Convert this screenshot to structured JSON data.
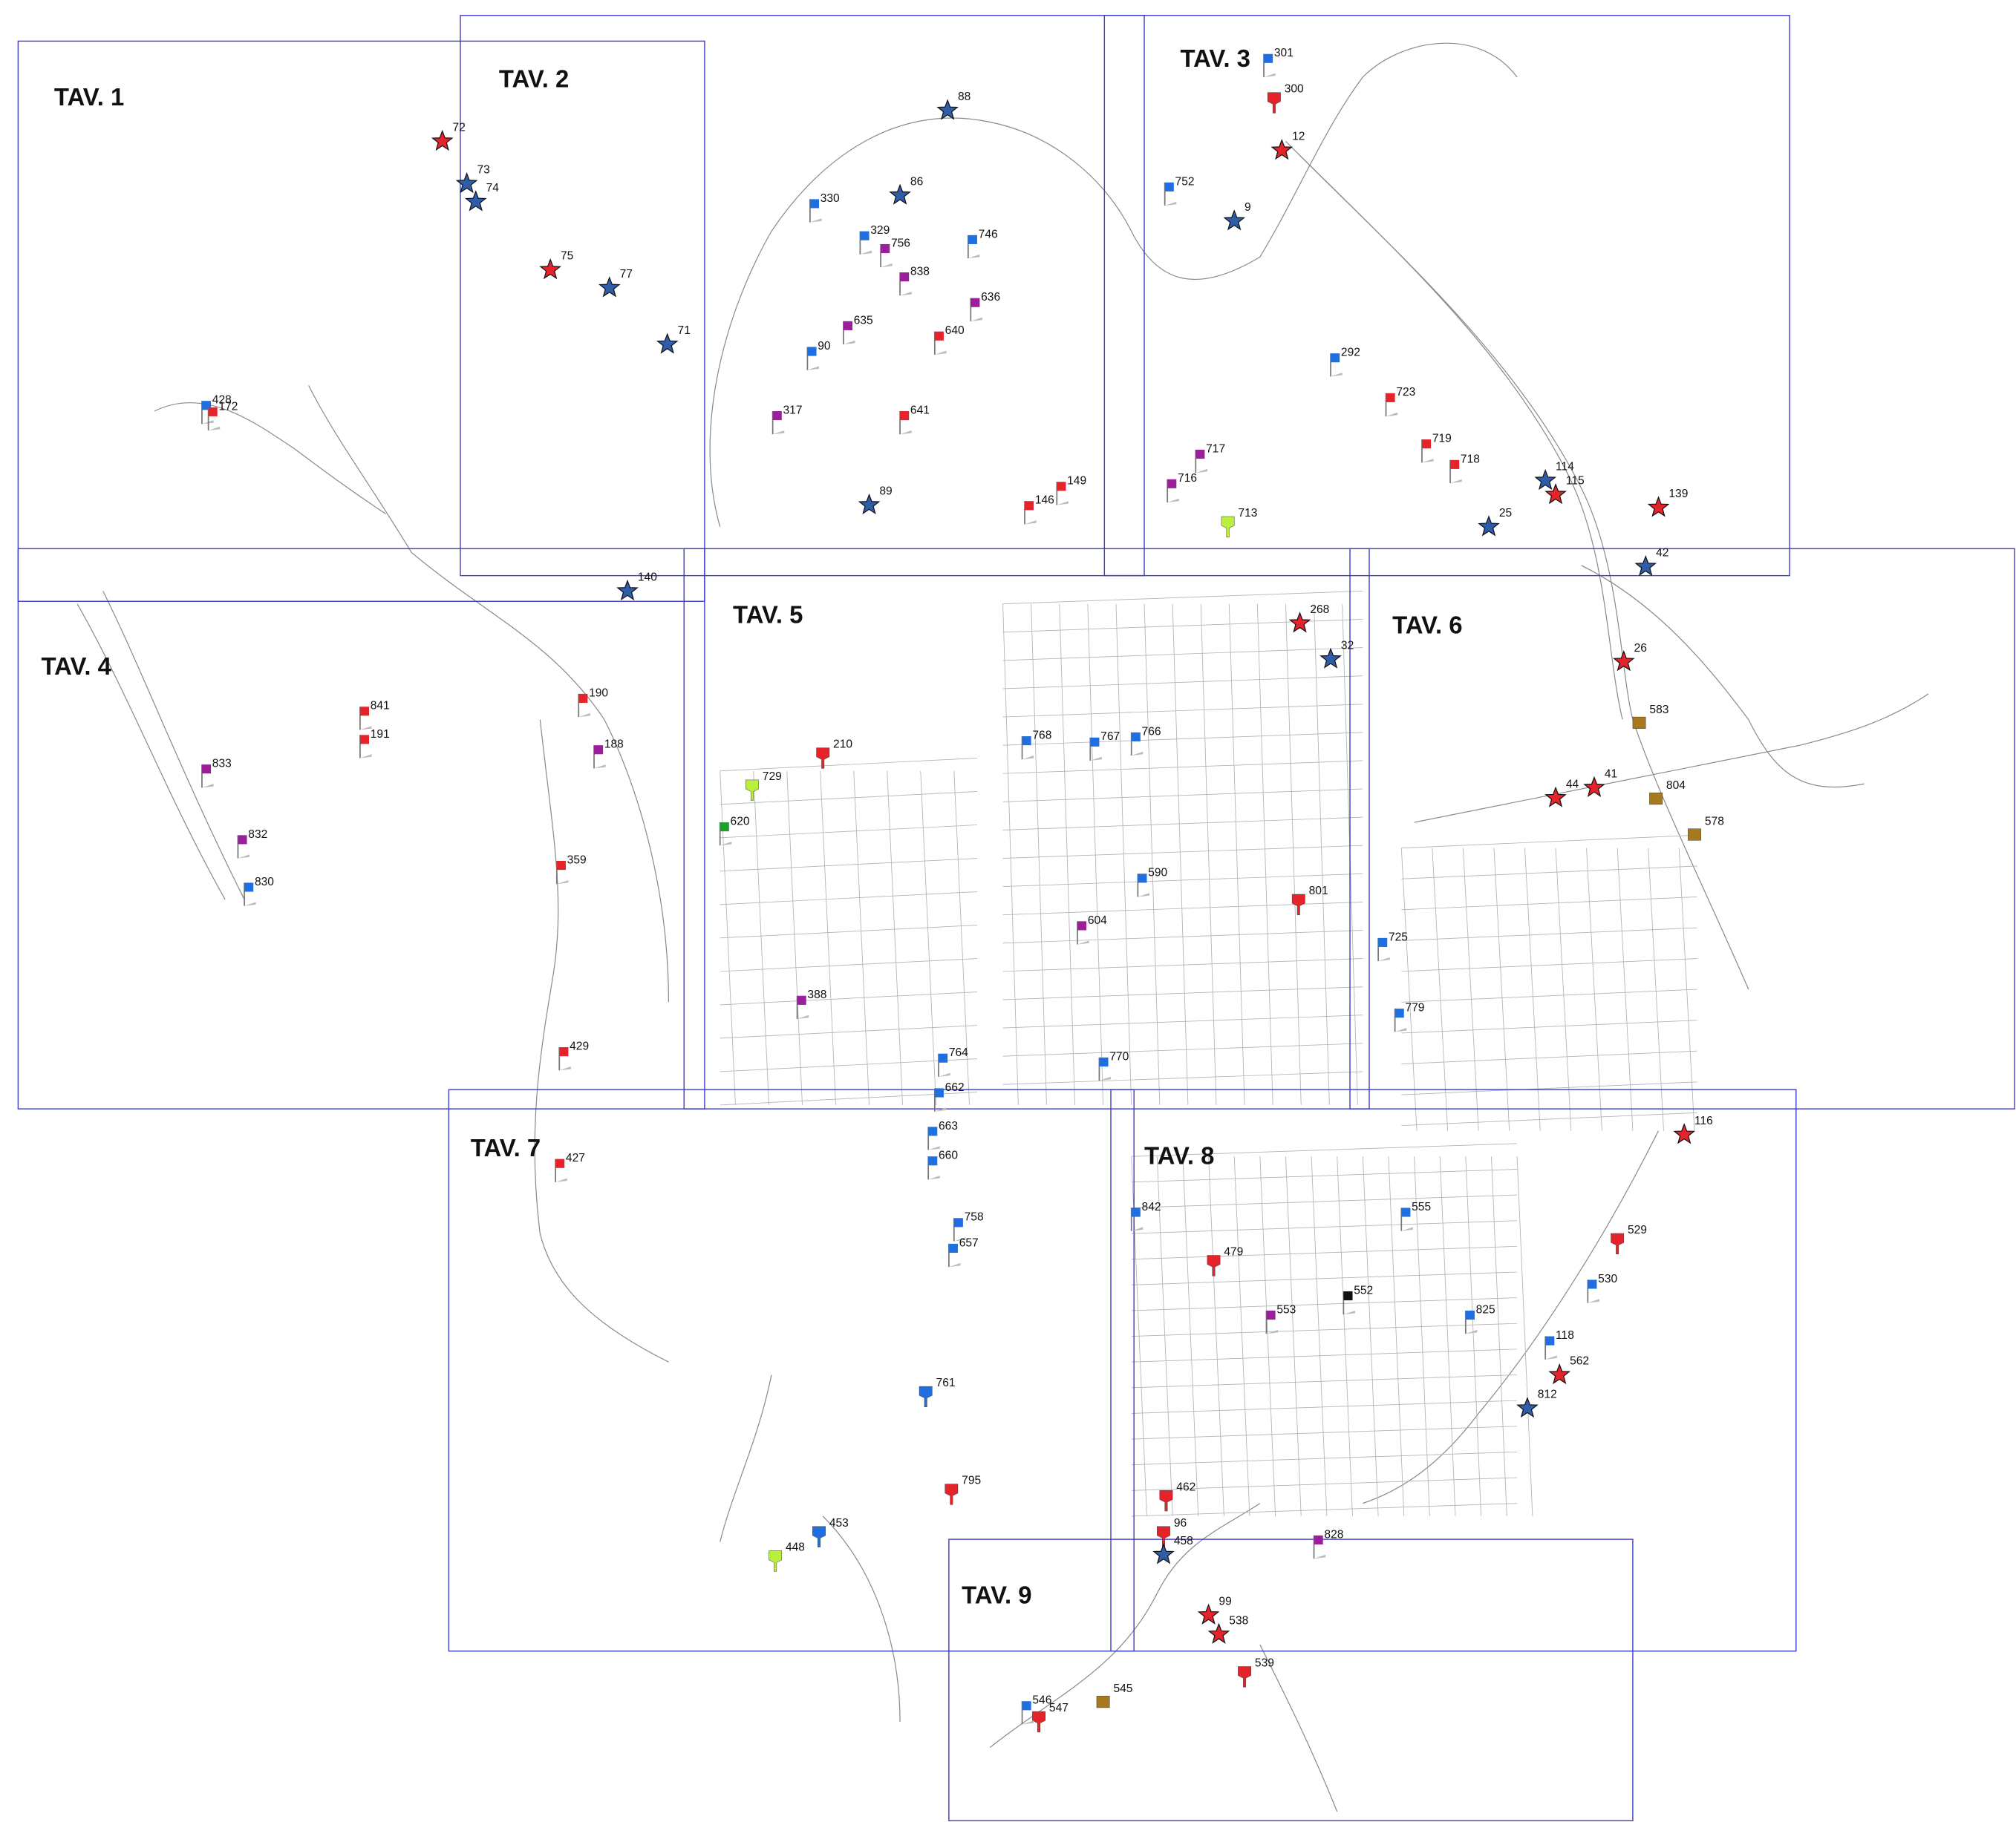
{
  "sheets": [
    "TAV. 1",
    "TAV. 2",
    "TAV. 3",
    "TAV. 4",
    "TAV. 5",
    "TAV. 6",
    "TAV. 7",
    "TAV. 8",
    "TAV. 9"
  ],
  "markers": [
    {
      "label": "72",
      "shape": "star",
      "color": "#e5232b"
    },
    {
      "label": "73",
      "shape": "star",
      "color": "#2f5da8"
    },
    {
      "label": "74",
      "shape": "star",
      "color": "#2f5da8"
    },
    {
      "label": "75",
      "shape": "star",
      "color": "#e5232b"
    },
    {
      "label": "77",
      "shape": "star",
      "color": "#2f5da8"
    },
    {
      "label": "71",
      "shape": "star",
      "color": "#2f5da8"
    },
    {
      "label": "88",
      "shape": "star",
      "color": "#2f5da8"
    },
    {
      "label": "86",
      "shape": "star",
      "color": "#2f5da8"
    },
    {
      "label": "9",
      "shape": "star",
      "color": "#2f5da8"
    },
    {
      "label": "12",
      "shape": "star",
      "color": "#e5232b"
    },
    {
      "label": "300",
      "shape": "pin",
      "color": "#e5232b"
    },
    {
      "label": "301",
      "shape": "flag",
      "color": "#1f6fe0"
    },
    {
      "label": "752",
      "shape": "flag",
      "color": "#1f6fe0"
    },
    {
      "label": "114",
      "shape": "star",
      "color": "#2f5da8"
    },
    {
      "label": "115",
      "shape": "star",
      "color": "#e5232b"
    },
    {
      "label": "139",
      "shape": "star",
      "color": "#e5232b"
    },
    {
      "label": "42",
      "shape": "star",
      "color": "#2f5da8"
    },
    {
      "label": "25",
      "shape": "star",
      "color": "#2f5da8"
    },
    {
      "label": "26",
      "shape": "star",
      "color": "#e5232b"
    },
    {
      "label": "41",
      "shape": "star",
      "color": "#e5232b"
    },
    {
      "label": "44",
      "shape": "star",
      "color": "#e5232b"
    },
    {
      "label": "32",
      "shape": "star",
      "color": "#2f5da8"
    },
    {
      "label": "268",
      "shape": "star",
      "color": "#e5232b"
    },
    {
      "label": "428",
      "shape": "flag",
      "color": "#1f6fe0"
    },
    {
      "label": "172",
      "shape": "flag",
      "color": "#e5232b"
    },
    {
      "label": "833",
      "shape": "flag",
      "color": "#9b1f9b"
    },
    {
      "label": "832",
      "shape": "flag",
      "color": "#9b1f9b"
    },
    {
      "label": "830",
      "shape": "flag",
      "color": "#1f6fe0"
    },
    {
      "label": "841",
      "shape": "flag",
      "color": "#e5232b"
    },
    {
      "label": "191",
      "shape": "flag",
      "color": "#e5232b"
    },
    {
      "label": "140",
      "shape": "star",
      "color": "#2f5da8"
    },
    {
      "label": "190",
      "shape": "flag",
      "color": "#e5232b"
    },
    {
      "label": "188",
      "shape": "flag",
      "color": "#9b1f9b"
    },
    {
      "label": "359",
      "shape": "flag",
      "color": "#e5232b"
    },
    {
      "label": "429",
      "shape": "flag",
      "color": "#e5232b"
    },
    {
      "label": "427",
      "shape": "flag",
      "color": "#e5232b"
    },
    {
      "label": "453",
      "shape": "pin",
      "color": "#1f6fe0"
    },
    {
      "label": "448",
      "shape": "pin",
      "color": "#b8f03c"
    },
    {
      "label": "529",
      "shape": "pin",
      "color": "#e5232b"
    },
    {
      "label": "530",
      "shape": "flag",
      "color": "#1f6fe0"
    },
    {
      "label": "118",
      "shape": "flag",
      "color": "#1f6fe0"
    },
    {
      "label": "562",
      "shape": "star",
      "color": "#e5232b"
    },
    {
      "label": "812",
      "shape": "star",
      "color": "#2f5da8"
    },
    {
      "label": "116",
      "shape": "star",
      "color": "#e5232b"
    },
    {
      "label": "828",
      "shape": "flag",
      "color": "#9b1f9b"
    },
    {
      "label": "539",
      "shape": "pin",
      "color": "#e5232b"
    },
    {
      "label": "538",
      "shape": "star",
      "color": "#e5232b"
    },
    {
      "label": "99",
      "shape": "star",
      "color": "#e5232b"
    },
    {
      "label": "547",
      "shape": "pin",
      "color": "#e5232b"
    },
    {
      "label": "545",
      "shape": "box",
      "color": "#a8781c"
    },
    {
      "label": "546",
      "shape": "flag",
      "color": "#1f6fe0"
    },
    {
      "label": "96",
      "shape": "pin",
      "color": "#e5232b"
    },
    {
      "label": "458",
      "shape": "star",
      "color": "#2f5da8"
    },
    {
      "label": "801",
      "shape": "pin",
      "color": "#e5232b"
    },
    {
      "label": "578",
      "shape": "box",
      "color": "#a8781c"
    },
    {
      "label": "583",
      "shape": "box",
      "color": "#a8781c"
    },
    {
      "label": "804",
      "shape": "box",
      "color": "#a8781c"
    },
    {
      "label": "770",
      "shape": "flag",
      "color": "#1f6fe0"
    },
    {
      "label": "604",
      "shape": "flag",
      "color": "#9b1f9b"
    },
    {
      "label": "590",
      "shape": "flag",
      "color": "#1f6fe0"
    },
    {
      "label": "766",
      "shape": "flag",
      "color": "#1f6fe0"
    },
    {
      "label": "767",
      "shape": "flag",
      "color": "#1f6fe0"
    },
    {
      "label": "768",
      "shape": "flag",
      "color": "#1f6fe0"
    },
    {
      "label": "729",
      "shape": "pin",
      "color": "#b8f03c"
    },
    {
      "label": "620",
      "shape": "flag",
      "color": "#1fa02a"
    },
    {
      "label": "210",
      "shape": "pin",
      "color": "#e5232b"
    },
    {
      "label": "388",
      "shape": "flag",
      "color": "#9b1f9b"
    },
    {
      "label": "764",
      "shape": "flag",
      "color": "#1f6fe0"
    },
    {
      "label": "662",
      "shape": "flag",
      "color": "#1f6fe0"
    },
    {
      "label": "663",
      "shape": "flag",
      "color": "#1f6fe0"
    },
    {
      "label": "660",
      "shape": "flag",
      "color": "#1f6fe0"
    },
    {
      "label": "758",
      "shape": "flag",
      "color": "#1f6fe0"
    },
    {
      "label": "657",
      "shape": "flag",
      "color": "#1f6fe0"
    },
    {
      "label": "761",
      "shape": "pin",
      "color": "#1f6fe0"
    },
    {
      "label": "795",
      "shape": "pin",
      "color": "#e5232b"
    },
    {
      "label": "553",
      "shape": "flag",
      "color": "#9b1f9b"
    },
    {
      "label": "552",
      "shape": "flag",
      "color": "#111111"
    },
    {
      "label": "479",
      "shape": "pin",
      "color": "#e5232b"
    },
    {
      "label": "842",
      "shape": "flag",
      "color": "#1f6fe0"
    },
    {
      "label": "462",
      "shape": "pin",
      "color": "#e5232b"
    },
    {
      "label": "825",
      "shape": "flag",
      "color": "#1f6fe0"
    },
    {
      "label": "555",
      "shape": "flag",
      "color": "#1f6fe0"
    },
    {
      "label": "779",
      "shape": "flag",
      "color": "#1f6fe0"
    },
    {
      "label": "725",
      "shape": "flag",
      "color": "#1f6fe0"
    },
    {
      "label": "330",
      "shape": "flag",
      "color": "#1f6fe0"
    },
    {
      "label": "329",
      "shape": "flag",
      "color": "#1f6fe0"
    },
    {
      "label": "756",
      "shape": "flag",
      "color": "#9b1f9b"
    },
    {
      "label": "838",
      "shape": "flag",
      "color": "#9b1f9b"
    },
    {
      "label": "635",
      "shape": "flag",
      "color": "#9b1f9b"
    },
    {
      "label": "641",
      "shape": "flag",
      "color": "#e5232b"
    },
    {
      "label": "746",
      "shape": "flag",
      "color": "#1f6fe0"
    },
    {
      "label": "636",
      "shape": "flag",
      "color": "#9b1f9b"
    },
    {
      "label": "640",
      "shape": "flag",
      "color": "#e5232b"
    },
    {
      "label": "317",
      "shape": "flag",
      "color": "#9b1f9b"
    },
    {
      "label": "90",
      "shape": "flag",
      "color": "#1f6fe0"
    },
    {
      "label": "89",
      "shape": "star",
      "color": "#2f5da8"
    },
    {
      "label": "149",
      "shape": "flag",
      "color": "#e5232b"
    },
    {
      "label": "146",
      "shape": "flag",
      "color": "#e5232b"
    },
    {
      "label": "716",
      "shape": "flag",
      "color": "#9b1f9b"
    },
    {
      "label": "717",
      "shape": "flag",
      "color": "#9b1f9b"
    },
    {
      "label": "713",
      "shape": "pin",
      "color": "#b8f03c"
    },
    {
      "label": "718",
      "shape": "flag",
      "color": "#e5232b"
    },
    {
      "label": "723",
      "shape": "flag",
      "color": "#e5232b"
    },
    {
      "label": "719",
      "shape": "flag",
      "color": "#e5232b"
    },
    {
      "label": "292",
      "shape": "flag",
      "color": "#1f6fe0"
    }
  ]
}
